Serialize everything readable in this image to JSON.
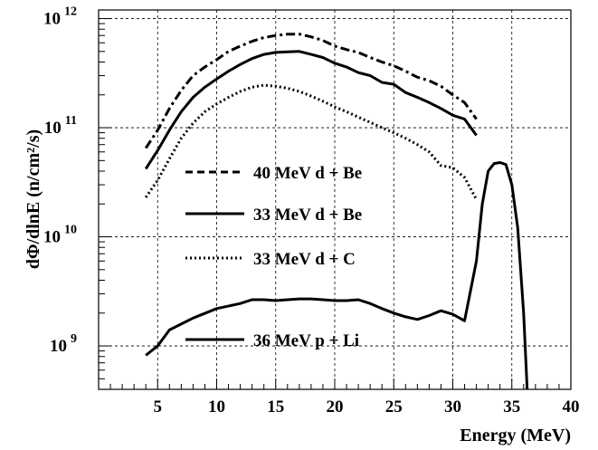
{
  "chart_data": {
    "type": "line",
    "xlabel": "Energy (MeV)",
    "ylabel": "dΦ/dlnE (n/cm²/s)",
    "xlim": [
      0,
      40
    ],
    "ylim": [
      400000000,
      1200000000000
    ],
    "yscale": "log",
    "grid": true,
    "legend_placement": "center-left",
    "x_ticks": [
      5,
      10,
      15,
      20,
      25,
      30,
      35,
      40
    ],
    "y_tick_labels": [
      {
        "value": 1000000000,
        "base": "10",
        "exp": "9"
      },
      {
        "value": 10000000000,
        "base": "10",
        "exp": "10"
      },
      {
        "value": 100000000000,
        "base": "10",
        "exp": "11"
      },
      {
        "value": 1000000000000,
        "base": "10",
        "exp": "12"
      }
    ],
    "series": [
      {
        "name": "40 MeV d + Be",
        "style": "dashdot",
        "x": [
          4,
          5,
          6,
          7,
          8,
          9,
          10,
          11,
          12,
          13,
          14,
          15,
          16,
          17,
          18,
          19,
          20,
          21,
          22,
          23,
          24,
          25,
          26,
          27,
          28,
          29,
          30,
          31,
          32
        ],
        "y": [
          65000000000,
          95000000000,
          150000000000,
          220000000000,
          300000000000,
          360000000000,
          420000000000,
          500000000000,
          560000000000,
          620000000000,
          670000000000,
          700000000000,
          720000000000,
          720000000000,
          680000000000,
          630000000000,
          560000000000,
          520000000000,
          490000000000,
          440000000000,
          400000000000,
          370000000000,
          330000000000,
          290000000000,
          270000000000,
          240000000000,
          200000000000,
          170000000000,
          120000000000
        ]
      },
      {
        "name": "33 MeV d + Be",
        "style": "solid",
        "x": [
          4,
          5,
          6,
          7,
          8,
          9,
          10,
          11,
          12,
          13,
          14,
          15,
          16,
          17,
          18,
          19,
          20,
          21,
          22,
          23,
          24,
          25,
          26,
          27,
          28,
          29,
          30,
          31,
          32
        ],
        "y": [
          42000000000,
          62000000000,
          95000000000,
          140000000000,
          190000000000,
          235000000000,
          280000000000,
          330000000000,
          380000000000,
          430000000000,
          470000000000,
          490000000000,
          495000000000,
          500000000000,
          470000000000,
          440000000000,
          390000000000,
          360000000000,
          320000000000,
          300000000000,
          260000000000,
          250000000000,
          210000000000,
          190000000000,
          170000000000,
          150000000000,
          130000000000,
          120000000000,
          85000000000
        ]
      },
      {
        "name": "33 MeV d + C",
        "style": "dotted",
        "x": [
          4,
          5,
          6,
          7,
          8,
          9,
          10,
          11,
          12,
          13,
          14,
          15,
          16,
          17,
          18,
          19,
          20,
          21,
          22,
          23,
          24,
          25,
          26,
          27,
          28,
          29,
          30,
          31,
          32
        ],
        "y": [
          23000000000,
          33000000000,
          52000000000,
          80000000000,
          110000000000,
          140000000000,
          165000000000,
          190000000000,
          215000000000,
          235000000000,
          245000000000,
          240000000000,
          230000000000,
          215000000000,
          195000000000,
          175000000000,
          155000000000,
          140000000000,
          125000000000,
          112000000000,
          100000000000,
          90000000000,
          80000000000,
          70000000000,
          60000000000,
          45000000000,
          43000000000,
          35000000000,
          22000000000
        ]
      },
      {
        "name": "36 MeV p + Li",
        "style": "solid",
        "x": [
          4,
          5,
          6,
          8,
          10,
          12,
          13,
          14,
          15,
          16,
          17,
          18,
          19,
          20,
          21,
          22,
          23,
          24,
          25,
          26,
          27,
          28,
          29,
          30,
          31,
          32,
          32.5,
          33,
          33.5,
          34,
          34.5,
          35,
          35.5,
          36,
          36.3
        ],
        "y": [
          820000000,
          1000000000,
          1400000000,
          1800000000,
          2200000000,
          2450000000,
          2650000000,
          2650000000,
          2600000000,
          2650000000,
          2700000000,
          2700000000,
          2650000000,
          2600000000,
          2600000000,
          2650000000,
          2450000000,
          2200000000,
          2000000000,
          1850000000,
          1750000000,
          1900000000,
          2100000000,
          1950000000,
          1700000000,
          6000000000,
          20000000000,
          40000000000,
          47000000000,
          48000000000,
          46000000000,
          30000000000,
          12000000000,
          2000000000,
          400000000
        ]
      }
    ]
  }
}
